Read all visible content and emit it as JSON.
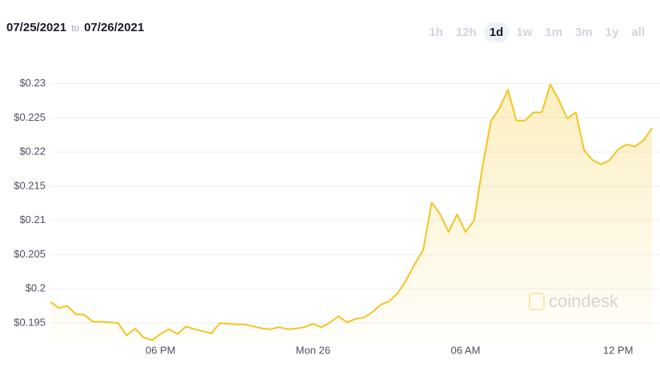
{
  "header": {
    "from": "07/25/2021",
    "to_word": "to",
    "to": "07/26/2021",
    "ranges": [
      "1h",
      "12h",
      "1d",
      "1w",
      "1m",
      "3m",
      "1y",
      "all"
    ],
    "active_range": "1d"
  },
  "chart_data": {
    "type": "area",
    "color": "#f4c41f",
    "watermark": "coindesk",
    "grid": true,
    "categories": [
      null,
      null,
      null,
      null,
      null,
      null,
      null,
      null,
      null,
      null,
      null,
      null,
      null,
      "06 PM",
      null,
      null,
      null,
      null,
      null,
      null,
      null,
      null,
      null,
      null,
      null,
      null,
      null,
      null,
      null,
      null,
      null,
      "Mon 26",
      null,
      null,
      null,
      null,
      null,
      null,
      null,
      null,
      null,
      null,
      null,
      null,
      null,
      null,
      null,
      null,
      null,
      "06 AM",
      null,
      null,
      null,
      null,
      null,
      null,
      null,
      null,
      null,
      null,
      null,
      null,
      null,
      null,
      null,
      null,
      null,
      "12 PM",
      null,
      null,
      null,
      null
    ],
    "values": [
      0.1981,
      0.1972,
      0.1975,
      0.1963,
      0.1962,
      0.1952,
      0.1952,
      0.1951,
      0.195,
      0.1932,
      0.1942,
      0.1929,
      0.1925,
      0.1934,
      0.1941,
      0.1934,
      0.1945,
      0.1941,
      0.1938,
      0.1935,
      0.195,
      0.1949,
      0.1948,
      0.1948,
      0.1945,
      0.1942,
      0.1941,
      0.1944,
      0.1941,
      0.1942,
      0.1944,
      0.1949,
      0.1944,
      0.1951,
      0.196,
      0.1951,
      0.1956,
      0.1958,
      0.1966,
      0.1977,
      0.1982,
      0.1994,
      0.2013,
      0.2036,
      0.2057,
      0.2126,
      0.2109,
      0.2083,
      0.2109,
      0.2083,
      0.21,
      0.2179,
      0.2246,
      0.2264,
      0.2291,
      0.2246,
      0.2246,
      0.2258,
      0.2258,
      0.2299,
      0.2276,
      0.2249,
      0.2258,
      0.2202,
      0.2188,
      0.2182,
      0.2188,
      0.2204,
      0.2211,
      0.2208,
      0.2217,
      0.2235
    ],
    "ylim": [
      0.1922,
      0.2317
    ],
    "yticks": [
      {
        "value": 0.195,
        "label": "$0.195"
      },
      {
        "value": 0.2,
        "label": "$0.2"
      },
      {
        "value": 0.205,
        "label": "$0.205"
      },
      {
        "value": 0.21,
        "label": "$0.21"
      },
      {
        "value": 0.215,
        "label": "$0.215"
      },
      {
        "value": 0.22,
        "label": "$0.22"
      },
      {
        "value": 0.225,
        "label": "$0.225"
      },
      {
        "value": 0.23,
        "label": "$0.23"
      }
    ]
  }
}
